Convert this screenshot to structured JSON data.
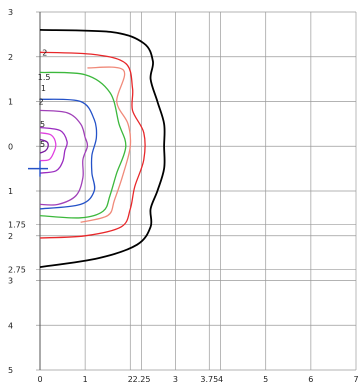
{
  "chart_data": {
    "type": "line",
    "title": "",
    "xlabel": "",
    "ylabel": "",
    "xlim": [
      0,
      7
    ],
    "ylim": [
      -5,
      3
    ],
    "y_axis_direction": "up",
    "grid": true,
    "x_ticks": [
      {
        "value": 0,
        "label": "0"
      },
      {
        "value": 1,
        "label": "1"
      },
      {
        "value": 2,
        "label": "2"
      },
      {
        "value": 2.25,
        "label": "2.25"
      },
      {
        "value": 3,
        "label": "3"
      },
      {
        "value": 3.75,
        "label": "3.75"
      },
      {
        "value": 4,
        "label": "4"
      },
      {
        "value": 5,
        "label": "5"
      },
      {
        "value": 6,
        "label": "6"
      },
      {
        "value": 7,
        "label": "7"
      }
    ],
    "y_ticks": [
      {
        "value": 3,
        "label": "3"
      },
      {
        "value": 2,
        "label": "2"
      },
      {
        "value": 1,
        "label": "1"
      },
      {
        "value": 0,
        "label": "0"
      },
      {
        "value": -1,
        "label": "1"
      },
      {
        "value": -1.75,
        "label": "1.75"
      },
      {
        "value": -2,
        "label": "2"
      },
      {
        "value": -2.75,
        "label": "2.75"
      },
      {
        "value": -3,
        "label": "3"
      },
      {
        "value": -4,
        "label": "4"
      },
      {
        "value": -5,
        "label": "5"
      }
    ],
    "contours": [
      {
        "level": "",
        "color": "#000000",
        "points": [
          [
            0,
            2.6
          ],
          [
            1.6,
            2.55
          ],
          [
            2.3,
            2.3
          ],
          [
            2.5,
            1.9
          ],
          [
            2.45,
            1.5
          ],
          [
            2.6,
            1.0
          ],
          [
            2.75,
            0.5
          ],
          [
            2.75,
            0
          ],
          [
            2.75,
            -0.5
          ],
          [
            2.6,
            -1.0
          ],
          [
            2.45,
            -1.4
          ],
          [
            2.45,
            -1.8
          ],
          [
            2.15,
            -2.2
          ],
          [
            1.3,
            -2.5
          ],
          [
            0,
            -2.7
          ]
        ]
      },
      {
        "level": "2",
        "color": "#e8272a",
        "points": [
          [
            0,
            2.1
          ],
          [
            1.2,
            2.05
          ],
          [
            1.9,
            1.85
          ],
          [
            2.05,
            1.3
          ],
          [
            2.05,
            0.8
          ],
          [
            2.3,
            0.3
          ],
          [
            2.3,
            -0.3
          ],
          [
            2.1,
            -0.9
          ],
          [
            2.0,
            -1.4
          ],
          [
            1.8,
            -1.8
          ],
          [
            1.0,
            -2.0
          ],
          [
            0,
            -2.05
          ]
        ]
      },
      {
        "level": "",
        "color": "#f08a7a",
        "points": [
          [
            1.05,
            1.75
          ],
          [
            1.85,
            1.7
          ],
          [
            1.7,
            1.0
          ],
          [
            1.95,
            0.5
          ],
          [
            2.0,
            0
          ],
          [
            1.85,
            -0.6
          ],
          [
            1.65,
            -1.2
          ],
          [
            1.5,
            -1.55
          ],
          [
            0.9,
            -1.7
          ]
        ]
      },
      {
        "level": "1.5",
        "color": "#3cb83c",
        "points": [
          [
            0,
            1.65
          ],
          [
            1.0,
            1.6
          ],
          [
            1.55,
            1.2
          ],
          [
            1.75,
            0.5
          ],
          [
            1.9,
            0
          ],
          [
            1.7,
            -0.6
          ],
          [
            1.55,
            -1.1
          ],
          [
            1.4,
            -1.45
          ],
          [
            0.9,
            -1.6
          ],
          [
            0,
            -1.55
          ]
        ]
      },
      {
        "level": "1",
        "color": "#2452c8",
        "points": [
          [
            0,
            1.05
          ],
          [
            0.9,
            1.0
          ],
          [
            1.2,
            0.6
          ],
          [
            1.25,
            0.2
          ],
          [
            1.15,
            -0.2
          ],
          [
            1.15,
            -0.6
          ],
          [
            1.2,
            -1.0
          ],
          [
            0.9,
            -1.3
          ],
          [
            0,
            -1.4
          ]
        ]
      },
      {
        "level": "2",
        "color": "#a040b8",
        "points": [
          [
            0,
            0.8
          ],
          [
            0.6,
            0.75
          ],
          [
            0.9,
            0.5
          ],
          [
            1.0,
            0.2
          ],
          [
            1.05,
            0
          ],
          [
            0.95,
            -0.3
          ],
          [
            0.95,
            -0.7
          ],
          [
            0.8,
            -1.1
          ],
          [
            0.4,
            -1.3
          ],
          [
            0,
            -1.3
          ]
        ]
      },
      {
        "level": "5",
        "color": "#9a2cc0",
        "points": [
          [
            0,
            0.42
          ],
          [
            0.45,
            0.35
          ],
          [
            0.6,
            0.1
          ],
          [
            0.55,
            -0.1
          ],
          [
            0.5,
            -0.35
          ],
          [
            0.35,
            -0.55
          ],
          [
            0,
            -0.6
          ]
        ]
      },
      {
        "level": "",
        "color": "#e040e0",
        "points": [
          [
            0,
            0.3
          ],
          [
            0.25,
            0.25
          ],
          [
            0.35,
            0.05
          ],
          [
            0.3,
            -0.15
          ],
          [
            0.2,
            -0.3
          ],
          [
            0,
            -0.32
          ]
        ]
      },
      {
        "level": "",
        "color": "#7a1aa0",
        "points": [
          [
            0,
            0.15
          ],
          [
            0.15,
            0.1
          ],
          [
            0.18,
            0
          ],
          [
            0.12,
            -0.1
          ],
          [
            0,
            -0.15
          ]
        ]
      }
    ],
    "contour_labels": [
      {
        "text": "2",
        "x": 0.05,
        "y": 2.1
      },
      {
        "text": "1.5",
        "x": -0.05,
        "y": 1.55
      },
      {
        "text": "1",
        "x": 0.02,
        "y": 1.3
      },
      {
        "text": "2",
        "x": -0.03,
        "y": 1.0
      },
      {
        "text": "5",
        "x": 0.0,
        "y": 0.5
      },
      {
        "text": "5",
        "x": 0.0,
        "y": 0.05
      }
    ],
    "origin_marker": {
      "x": 0,
      "y": -0.5,
      "color": "#2452c8"
    }
  }
}
